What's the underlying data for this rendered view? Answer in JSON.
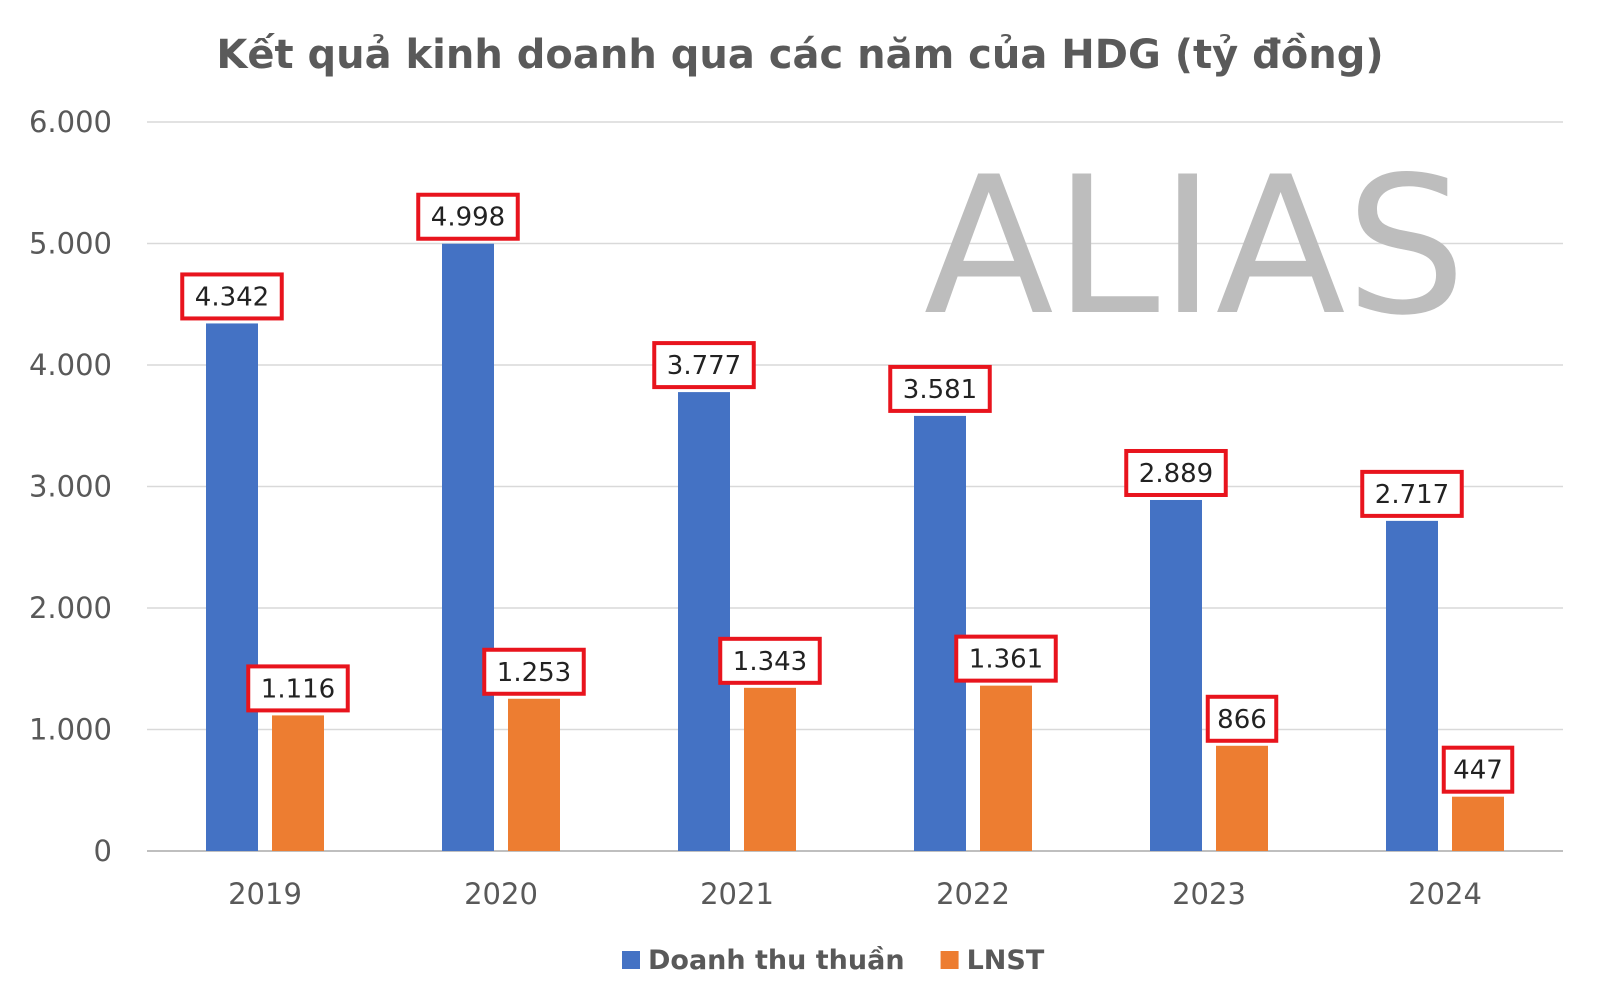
{
  "chart_data": {
    "type": "bar",
    "title": "Kết quả kinh doanh qua các năm của HDG (tỷ đồng)",
    "xlabel": "",
    "ylabel": "",
    "categories": [
      "2019",
      "2020",
      "2021",
      "2022",
      "2023",
      "2024"
    ],
    "series": [
      {
        "name": "Doanh thu thuần",
        "color": "#4472c4",
        "values": [
          4342,
          4998,
          3777,
          3581,
          2889,
          2717
        ],
        "labels": [
          "4.342",
          "4.998",
          "3.777",
          "3.581",
          "2.889",
          "2.717"
        ]
      },
      {
        "name": "LNST",
        "color": "#ed7d31",
        "values": [
          1116,
          1253,
          1343,
          1361,
          866,
          447
        ],
        "labels": [
          "1.116",
          "1.253",
          "1.343",
          "1.361",
          "866",
          "447"
        ]
      }
    ],
    "ylim": [
      0,
      6000
    ],
    "yticks": [
      0,
      1000,
      2000,
      3000,
      4000,
      5000,
      6000
    ],
    "ytick_labels": [
      "0",
      "1.000",
      "2.000",
      "3.000",
      "4.000",
      "5.000",
      "6.000"
    ],
    "grid": true,
    "legend_position": "bottom",
    "label_box_color": "#e8141d",
    "watermark": "ALIAS"
  }
}
